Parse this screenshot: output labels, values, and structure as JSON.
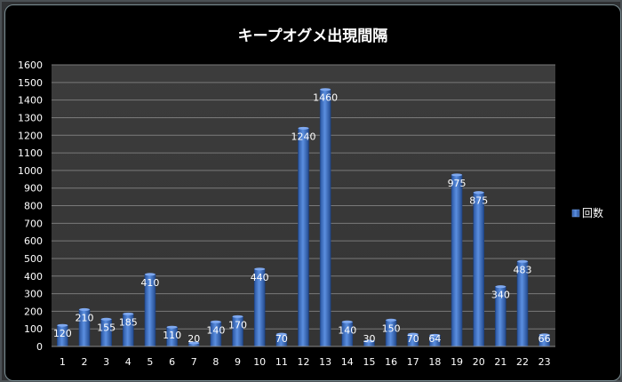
{
  "chart_data": {
    "type": "bar",
    "title": "キープオグメ出現間隔",
    "xlabel": "",
    "ylabel": "",
    "categories": [
      "1",
      "2",
      "3",
      "4",
      "5",
      "6",
      "7",
      "8",
      "9",
      "10",
      "11",
      "12",
      "13",
      "14",
      "15",
      "16",
      "17",
      "18",
      "19",
      "20",
      "21",
      "22",
      "23"
    ],
    "series": [
      {
        "name": "回数",
        "values": [
          120,
          210,
          155,
          185,
          410,
          110,
          20,
          140,
          170,
          440,
          70,
          1240,
          1460,
          140,
          30,
          150,
          70,
          64,
          975,
          875,
          340,
          483,
          66
        ]
      }
    ],
    "ylim": [
      0,
      1600
    ],
    "yticks": [
      0,
      100,
      200,
      300,
      400,
      500,
      600,
      700,
      800,
      900,
      1000,
      1100,
      1200,
      1300,
      1400,
      1500,
      1600
    ],
    "grid": true,
    "legend_position": "right",
    "bar_color": "#3d6fc2",
    "plot_background": "#3a3a3a",
    "chart_background": "#000000",
    "text_color": "#ffffff"
  }
}
